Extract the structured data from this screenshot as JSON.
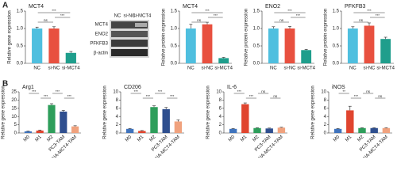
{
  "panels": [
    "A",
    "B"
  ],
  "blot": {
    "lanes": [
      "NC",
      "si-NC",
      "si-MCT4"
    ],
    "proteins": [
      "MCT4",
      "ENO2",
      "PFKFB3",
      "β-actin"
    ]
  },
  "chart_data": [
    {
      "type": "bar",
      "title": "MCT4",
      "y_label": "Relative gene expression",
      "categories": [
        "NC",
        "si-NC",
        "si-MCT4"
      ],
      "colors": [
        "#4fbfdf",
        "#e8503f",
        "#1f9e8c"
      ],
      "values": [
        1.0,
        1.0,
        0.3
      ],
      "errors": [
        0.04,
        0.05,
        0.04
      ],
      "ylim": [
        0,
        1.5
      ],
      "yticks": [
        {
          "value": 0,
          "label": "0.0"
        },
        0.5,
        {
          "value": 1,
          "label": "1.0"
        },
        1.5
      ],
      "annotations": [
        "ns",
        "***",
        "***"
      ]
    },
    {
      "type": "bar",
      "title": "MCT4",
      "y_label": "Relative protein expression",
      "categories": [
        "NC",
        "si-NC",
        "si-MCT4"
      ],
      "colors": [
        "#4fbfdf",
        "#e8503f",
        "#1f9e8c"
      ],
      "values": [
        1.0,
        1.12,
        0.15
      ],
      "errors": [
        0.12,
        0.06,
        0.02
      ],
      "ylim": [
        0,
        1.5
      ],
      "yticks": [
        {
          "value": 0,
          "label": "0.0"
        },
        0.5,
        {
          "value": 1,
          "label": "1.0"
        },
        1.5
      ],
      "annotations": [
        "ns",
        "***",
        "***"
      ]
    },
    {
      "type": "bar",
      "title": "ENO2",
      "y_label": "Relative protein expression",
      "categories": [
        "NC",
        "si-NC",
        "si-MCT4"
      ],
      "colors": [
        "#4fbfdf",
        "#e8503f",
        "#1f9e8c"
      ],
      "values": [
        1.0,
        1.0,
        0.38
      ],
      "errors": [
        0.05,
        0.06,
        0.02
      ],
      "ylim": [
        0,
        1.5
      ],
      "yticks": [
        {
          "value": 0,
          "label": "0.0"
        },
        0.5,
        {
          "value": 1,
          "label": "1.0"
        },
        1.5
      ],
      "annotations": [
        "ns",
        "***",
        "***"
      ]
    },
    {
      "type": "bar",
      "title": "PFKFB3",
      "y_label": "Relative protein expression",
      "categories": [
        "NC",
        "si-NC",
        "si-MCT4"
      ],
      "colors": [
        "#4fbfdf",
        "#e8503f",
        "#1f9e8c"
      ],
      "values": [
        1.0,
        1.08,
        0.7
      ],
      "errors": [
        0.05,
        0.08,
        0.05
      ],
      "ylim": [
        0,
        1.5
      ],
      "yticks": [
        {
          "value": 0,
          "label": "0.0"
        },
        0.5,
        {
          "value": 1,
          "label": "1.0"
        },
        1.5
      ],
      "annotations": [
        "ns",
        "***",
        "***"
      ]
    },
    {
      "type": "bar",
      "title": "Arg1",
      "y_label": "Relative gene expression",
      "categories": [
        "M0",
        "M1",
        "M2",
        "PC3-TAM",
        "shRNA-MCT4-TAM"
      ],
      "colors": [
        "#3f73bd",
        "#e0452f",
        "#2e9e5b",
        "#2f4f8f",
        "#f0a27e"
      ],
      "values": [
        1.0,
        1.5,
        17,
        13,
        4
      ],
      "errors": [
        0.2,
        0.3,
        0.8,
        0.7,
        0.4
      ],
      "ylim": [
        0,
        25
      ],
      "yticks": [
        0,
        5,
        10,
        15,
        20,
        25
      ],
      "annotations": [
        "***",
        "***",
        "***",
        "***"
      ]
    },
    {
      "type": "bar",
      "title": "CD206",
      "y_label": "Relative gene expression",
      "categories": [
        "M0",
        "M1",
        "M2",
        "PC3-TAM",
        "shRNA-MCT4-TAM"
      ],
      "colors": [
        "#3f73bd",
        "#e0452f",
        "#2e9e5b",
        "#2f4f8f",
        "#f0a27e"
      ],
      "values": [
        1.0,
        0.5,
        6.3,
        5.8,
        2.8
      ],
      "errors": [
        0.1,
        0.1,
        0.3,
        0.4,
        0.4
      ],
      "ylim": [
        0,
        10
      ],
      "yticks": [
        0,
        2,
        4,
        6,
        8,
        10
      ],
      "annotations": [
        "***",
        "***",
        "***",
        "***"
      ]
    },
    {
      "type": "bar",
      "title": "IL-6",
      "y_label": "Relative gene expression",
      "categories": [
        "M0",
        "M1",
        "M2",
        "PC3-TAM",
        "shRNA-MCT4-TAM"
      ],
      "colors": [
        "#3f73bd",
        "#e0452f",
        "#2e9e5b",
        "#2f4f8f",
        "#f0a27e"
      ],
      "values": [
        1.0,
        7.0,
        1.2,
        1.1,
        1.3
      ],
      "errors": [
        0.1,
        0.3,
        0.1,
        0.1,
        0.1
      ],
      "ylim": [
        0,
        10
      ],
      "yticks": [
        0,
        2,
        4,
        6,
        8,
        10
      ],
      "annotations": [
        "***",
        "***",
        "ns",
        "ns"
      ]
    },
    {
      "type": "bar",
      "title": "iNOS",
      "y_label": "Relative gene expression",
      "categories": [
        "M0",
        "M1",
        "M2",
        "PC3-TAM",
        "shRNA-MCT4-TAM"
      ],
      "colors": [
        "#3f73bd",
        "#e0452f",
        "#2e9e5b",
        "#2f4f8f",
        "#f0a27e"
      ],
      "values": [
        1.0,
        5.5,
        1.2,
        1.2,
        1.2
      ],
      "errors": [
        0.1,
        1.0,
        0.1,
        0.1,
        0.1
      ],
      "ylim": [
        0,
        10
      ],
      "yticks": [
        0,
        2,
        4,
        6,
        8,
        10
      ],
      "annotations": [
        "**",
        "***",
        "ns",
        "ns"
      ]
    }
  ]
}
